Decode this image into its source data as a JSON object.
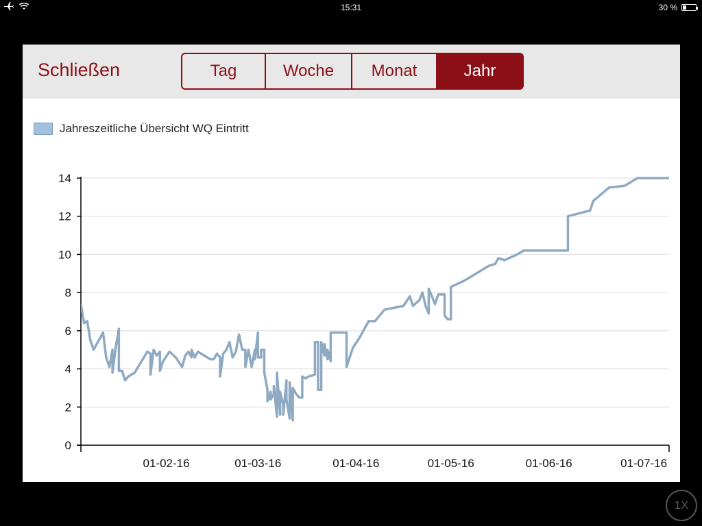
{
  "status_bar": {
    "time": "15:31",
    "battery_text": "30 %",
    "battery_level": 0.3
  },
  "toolbar": {
    "close_label": "Schließen",
    "tabs": [
      {
        "label": "Tag",
        "active": false
      },
      {
        "label": "Woche",
        "active": false
      },
      {
        "label": "Monat",
        "active": false
      },
      {
        "label": "Jahr",
        "active": true
      }
    ]
  },
  "zoom_label": "1X",
  "colors": {
    "accent": "#8c0f17",
    "series": "#8eaac2",
    "legend_swatch": "#a2c1de"
  },
  "chart_data": {
    "type": "line",
    "legend": "Jahreszeitliche Übersicht WQ Eintritt",
    "legend_placement": "top-left",
    "xlabel": "",
    "ylabel": "",
    "ylim": [
      0,
      14
    ],
    "yticks": [
      "0",
      "2",
      "4",
      "6",
      "8",
      "10",
      "12",
      "14"
    ],
    "xlim": [
      "2016-01-05",
      "2016-07-09"
    ],
    "xticks": [
      {
        "date": "2016-02-01",
        "label": "01-02-16"
      },
      {
        "date": "2016-03-01",
        "label": "01-03-16"
      },
      {
        "date": "2016-04-01",
        "label": "01-04-16"
      },
      {
        "date": "2016-05-01",
        "label": "01-05-16"
      },
      {
        "date": "2016-06-01",
        "label": "01-06-16"
      },
      {
        "date": "2016-07-01",
        "label": "01-07-16"
      }
    ],
    "grid": "horizontal",
    "series": [
      {
        "name": "Jahreszeitliche Übersicht WQ Eintritt",
        "points": [
          [
            "2016-01-05",
            7.4
          ],
          [
            "2016-01-06",
            6.4
          ],
          [
            "2016-01-07",
            6.5
          ],
          [
            "2016-01-08",
            5.5
          ],
          [
            "2016-01-09",
            5.0
          ],
          [
            "2016-01-12",
            5.9
          ],
          [
            "2016-01-13",
            4.6
          ],
          [
            "2016-01-14",
            4.1
          ],
          [
            "2016-01-15",
            5.0
          ],
          [
            "2016-01-15",
            3.8
          ],
          [
            "2016-01-16",
            5.1
          ],
          [
            "2016-01-17",
            6.1
          ],
          [
            "2016-01-17",
            3.9
          ],
          [
            "2016-01-18",
            3.9
          ],
          [
            "2016-01-19",
            3.4
          ],
          [
            "2016-01-20",
            3.6
          ],
          [
            "2016-01-22",
            3.8
          ],
          [
            "2016-01-26",
            4.9
          ],
          [
            "2016-01-27",
            4.8
          ],
          [
            "2016-01-27",
            3.7
          ],
          [
            "2016-01-28",
            5.0
          ],
          [
            "2016-01-29",
            4.7
          ],
          [
            "2016-01-30",
            4.9
          ],
          [
            "2016-01-30",
            3.9
          ],
          [
            "2016-01-31",
            4.4
          ],
          [
            "2016-02-02",
            4.9
          ],
          [
            "2016-02-04",
            4.6
          ],
          [
            "2016-02-06",
            4.1
          ],
          [
            "2016-02-07",
            4.7
          ],
          [
            "2016-02-08",
            4.9
          ],
          [
            "2016-02-09",
            4.6
          ],
          [
            "2016-02-09",
            5.0
          ],
          [
            "2016-02-10",
            4.6
          ],
          [
            "2016-02-11",
            4.9
          ],
          [
            "2016-02-13",
            4.7
          ],
          [
            "2016-02-15",
            4.5
          ],
          [
            "2016-02-16",
            4.5
          ],
          [
            "2016-02-17",
            4.8
          ],
          [
            "2016-02-18",
            4.6
          ],
          [
            "2016-02-18",
            3.6
          ],
          [
            "2016-02-19",
            4.8
          ],
          [
            "2016-02-20",
            5.0
          ],
          [
            "2016-02-21",
            5.4
          ],
          [
            "2016-02-22",
            4.6
          ],
          [
            "2016-02-23",
            4.9
          ],
          [
            "2016-02-24",
            5.8
          ],
          [
            "2016-02-25",
            5.0
          ],
          [
            "2016-02-26",
            5.0
          ],
          [
            "2016-02-26",
            4.1
          ],
          [
            "2016-02-27",
            5.0
          ],
          [
            "2016-02-28",
            4.1
          ],
          [
            "2016-02-29",
            5.0
          ],
          [
            "2016-02-29",
            4.5
          ],
          [
            "2016-03-01",
            5.9
          ],
          [
            "2016-03-01",
            4.6
          ],
          [
            "2016-03-02",
            4.6
          ],
          [
            "2016-03-02",
            5.0
          ],
          [
            "2016-03-03",
            5.0
          ],
          [
            "2016-03-03",
            3.8
          ],
          [
            "2016-03-04",
            2.9
          ],
          [
            "2016-03-04",
            2.3
          ],
          [
            "2016-03-05",
            2.8
          ],
          [
            "2016-03-05",
            2.4
          ],
          [
            "2016-03-06",
            2.7
          ],
          [
            "2016-03-06",
            3.1
          ],
          [
            "2016-03-07",
            1.5
          ],
          [
            "2016-03-07",
            3.8
          ],
          [
            "2016-03-08",
            1.6
          ],
          [
            "2016-03-08",
            2.8
          ],
          [
            "2016-03-09",
            2.1
          ],
          [
            "2016-03-09",
            1.6
          ],
          [
            "2016-03-10",
            3.4
          ],
          [
            "2016-03-10",
            2.4
          ],
          [
            "2016-03-11",
            1.4
          ],
          [
            "2016-03-11",
            3.3
          ],
          [
            "2016-03-12",
            1.3
          ],
          [
            "2016-03-12",
            3.0
          ],
          [
            "2016-03-13",
            2.7
          ],
          [
            "2016-03-14",
            2.5
          ],
          [
            "2016-03-15",
            2.5
          ],
          [
            "2016-03-15",
            3.6
          ],
          [
            "2016-03-16",
            3.5
          ],
          [
            "2016-03-17",
            3.6
          ],
          [
            "2016-03-19",
            3.7
          ],
          [
            "2016-03-19",
            5.4
          ],
          [
            "2016-03-20",
            5.4
          ],
          [
            "2016-03-20",
            2.9
          ],
          [
            "2016-03-21",
            2.9
          ],
          [
            "2016-03-21",
            5.4
          ],
          [
            "2016-03-22",
            4.7
          ],
          [
            "2016-03-22",
            5.3
          ],
          [
            "2016-03-23",
            4.5
          ],
          [
            "2016-03-23",
            5.0
          ],
          [
            "2016-03-24",
            4.4
          ],
          [
            "2016-03-24",
            5.9
          ],
          [
            "2016-03-29",
            5.9
          ],
          [
            "2016-03-29",
            4.1
          ],
          [
            "2016-03-31",
            5.1
          ],
          [
            "2016-04-02",
            5.6
          ],
          [
            "2016-04-05",
            6.5
          ],
          [
            "2016-04-07",
            6.5
          ],
          [
            "2016-04-10",
            7.1
          ],
          [
            "2016-04-13",
            7.2
          ],
          [
            "2016-04-16",
            7.3
          ],
          [
            "2016-04-18",
            7.8
          ],
          [
            "2016-04-19",
            7.3
          ],
          [
            "2016-04-21",
            7.6
          ],
          [
            "2016-04-22",
            8.0
          ],
          [
            "2016-04-23",
            7.3
          ],
          [
            "2016-04-24",
            6.9
          ],
          [
            "2016-04-24",
            8.2
          ],
          [
            "2016-04-25",
            7.8
          ],
          [
            "2016-04-26",
            7.4
          ],
          [
            "2016-04-27",
            7.9
          ],
          [
            "2016-04-28",
            7.9
          ],
          [
            "2016-04-29",
            7.9
          ],
          [
            "2016-04-29",
            6.8
          ],
          [
            "2016-04-30",
            6.6
          ],
          [
            "2016-05-01",
            6.6
          ],
          [
            "2016-05-01",
            8.3
          ],
          [
            "2016-05-05",
            8.6
          ],
          [
            "2016-05-08",
            8.9
          ],
          [
            "2016-05-12",
            9.3
          ],
          [
            "2016-05-13",
            9.4
          ],
          [
            "2016-05-15",
            9.5
          ],
          [
            "2016-05-16",
            9.8
          ],
          [
            "2016-05-18",
            9.7
          ],
          [
            "2016-05-22",
            10.0
          ],
          [
            "2016-05-24",
            10.2
          ],
          [
            "2016-06-07",
            10.2
          ],
          [
            "2016-06-07",
            12.0
          ],
          [
            "2016-06-14",
            12.3
          ],
          [
            "2016-06-15",
            12.8
          ],
          [
            "2016-06-20",
            13.5
          ],
          [
            "2016-06-25",
            13.6
          ],
          [
            "2016-06-29",
            14.0
          ],
          [
            "2016-07-09",
            14.0
          ]
        ]
      }
    ]
  }
}
